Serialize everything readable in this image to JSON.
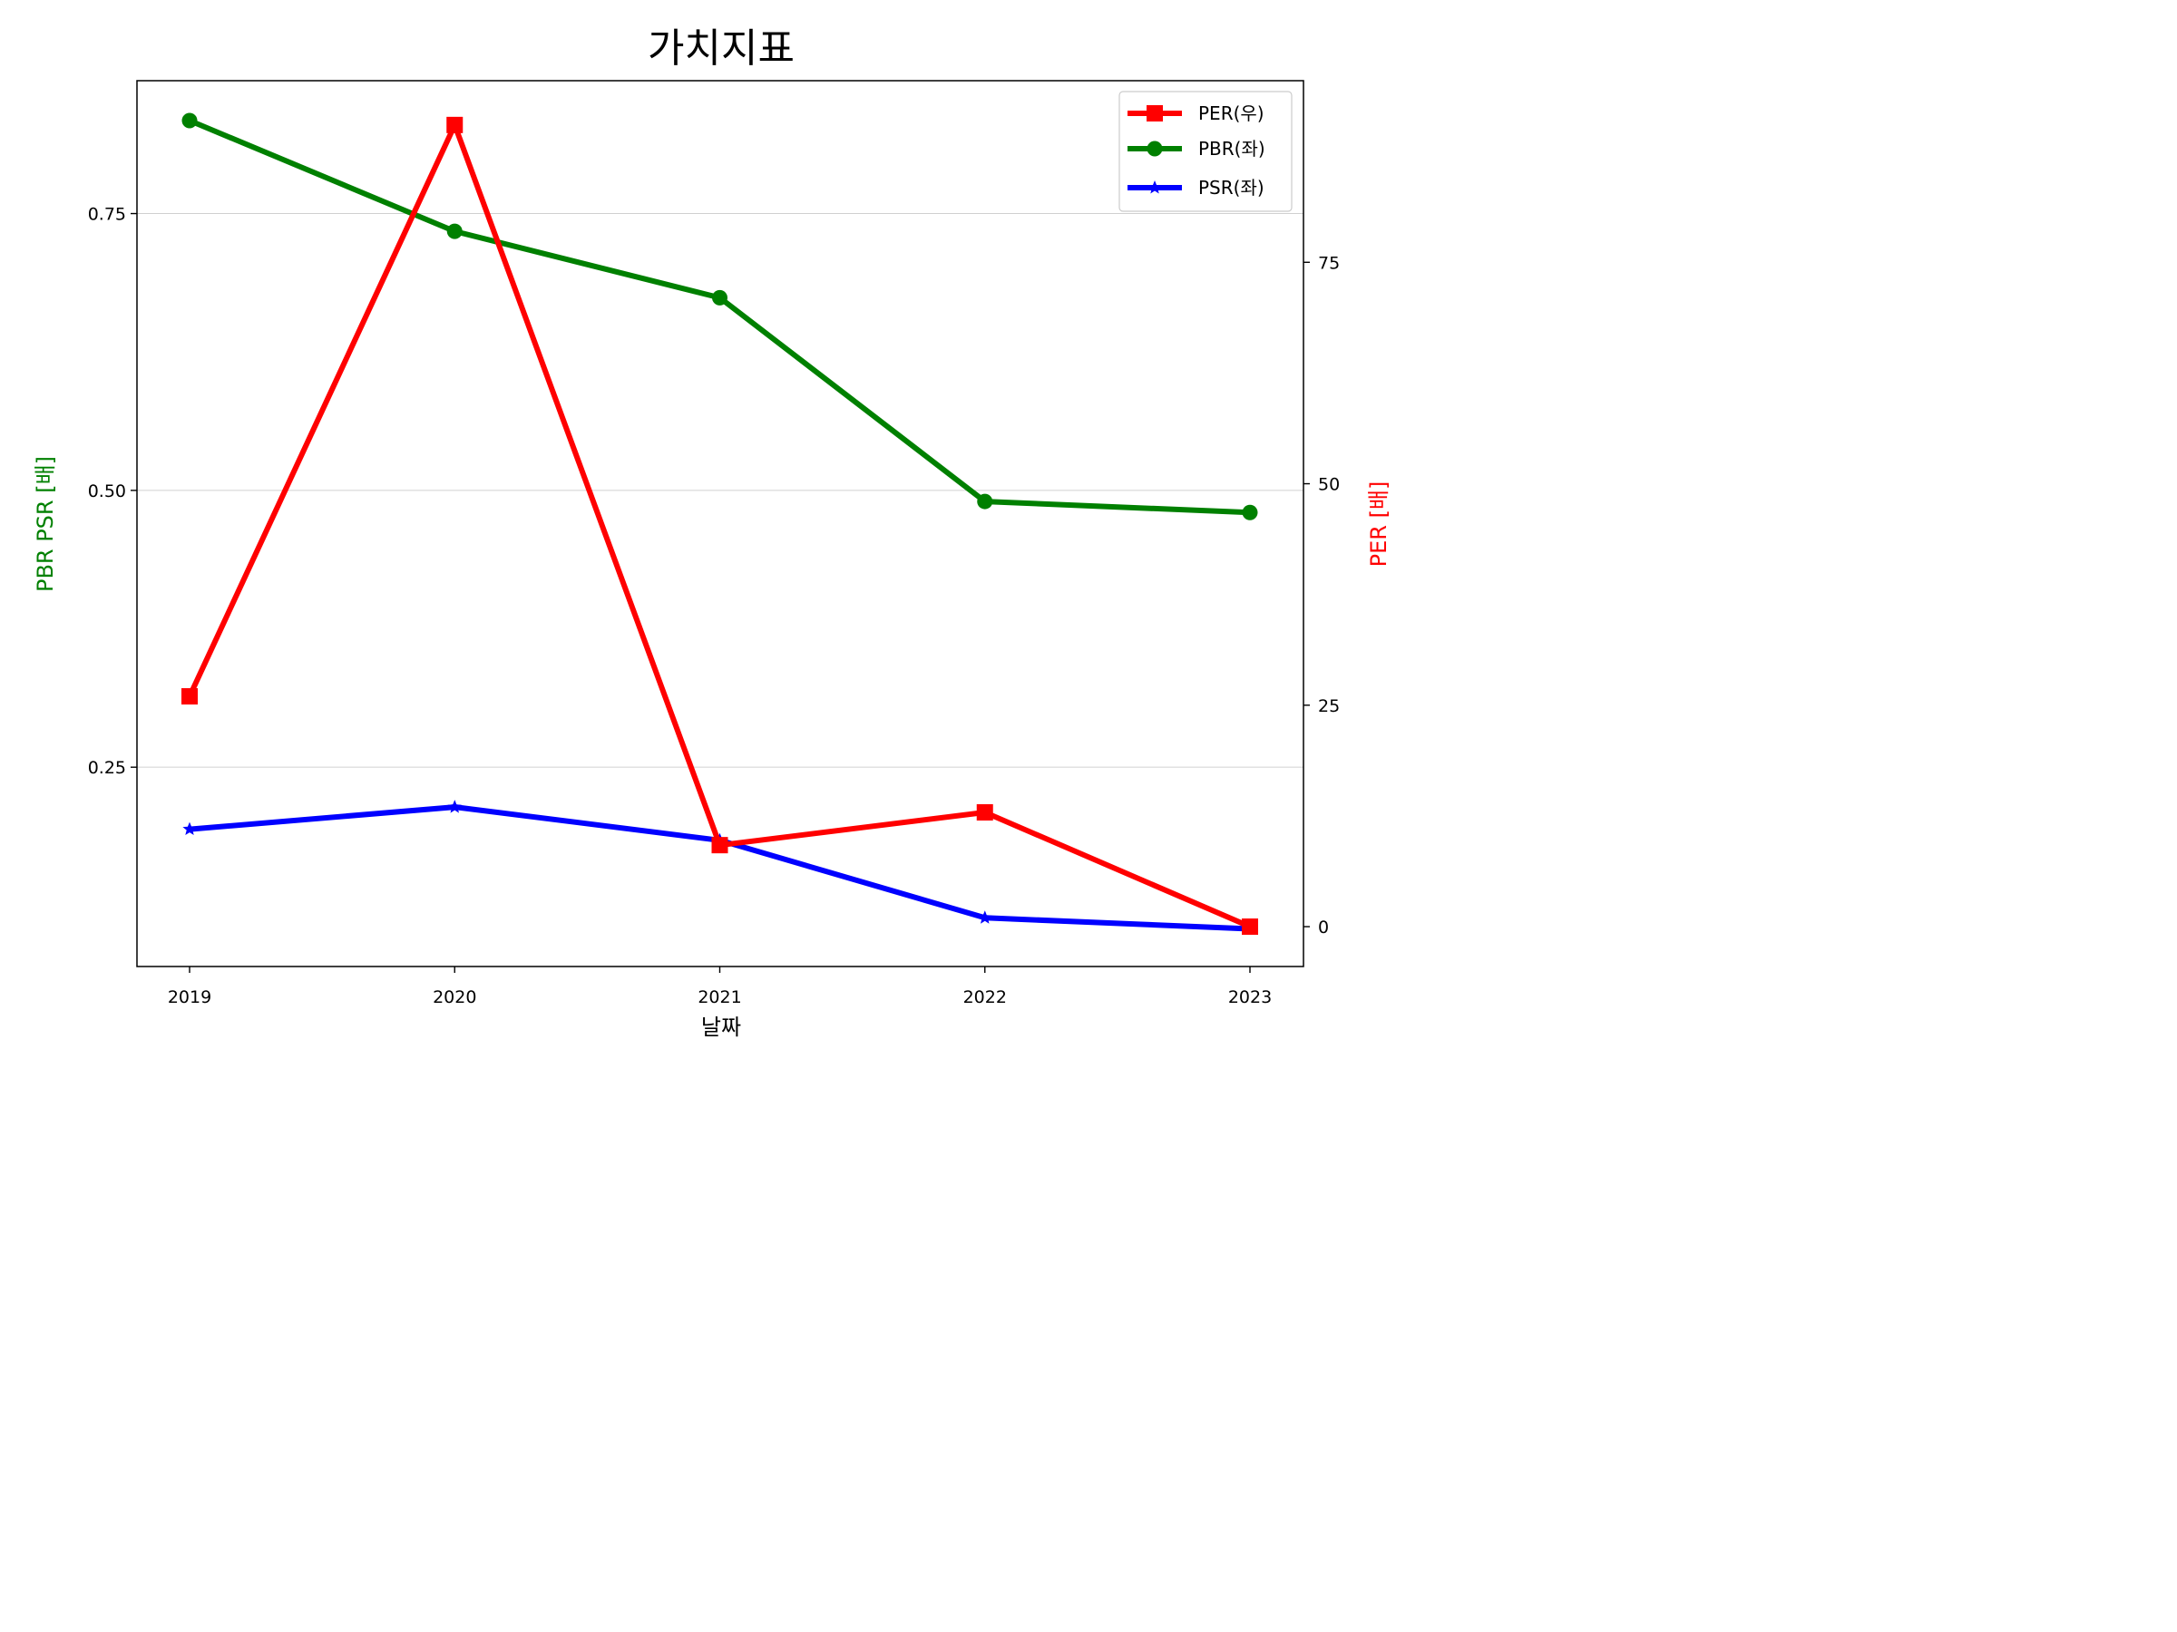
{
  "chart_data": {
    "type": "line",
    "title": "가치지표",
    "xlabel": "날짜",
    "ylabel_left": "PBR PSR [배]",
    "ylabel_right": "PER [배]",
    "categories": [
      "2019",
      "2020",
      "2021",
      "2022",
      "2023"
    ],
    "left_axis": {
      "ylim": [
        0.07,
        0.87
      ],
      "ticks": [
        0.25,
        0.5,
        0.75
      ],
      "tick_labels": [
        "0.25",
        "0.50",
        "0.75"
      ]
    },
    "right_axis": {
      "ylim": [
        -4.5,
        95.5
      ],
      "ticks": [
        0,
        25,
        50,
        75
      ],
      "tick_labels": [
        "0",
        "25",
        "50",
        "75"
      ]
    },
    "grid": "horizontal (left axis)",
    "legend_position": "top-right",
    "series": [
      {
        "name": "PER(우)",
        "axis": "right",
        "color": "#ff0000",
        "marker": "square",
        "values": [
          26,
          90.5,
          9.2,
          12.9,
          0
        ]
      },
      {
        "name": "PBR(좌)",
        "axis": "left",
        "color": "#008000",
        "marker": "circle",
        "values": [
          0.834,
          0.734,
          0.674,
          0.49,
          0.48
        ]
      },
      {
        "name": "PSR(좌)",
        "axis": "left",
        "color": "#0000ff",
        "marker": "star",
        "values": [
          0.194,
          0.214,
          0.184,
          0.114,
          0.104
        ]
      }
    ]
  }
}
